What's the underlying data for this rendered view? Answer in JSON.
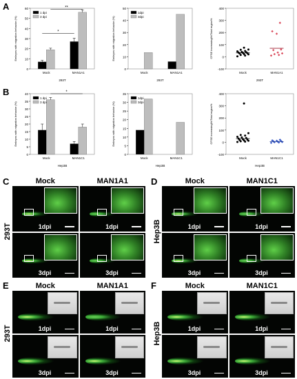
{
  "panels": {
    "A": "A",
    "B": "B",
    "C": "C",
    "D": "D",
    "E": "E",
    "F": "F"
  },
  "chart_data": [
    {
      "id": "A-left",
      "type": "bar",
      "categories": [
        "Mock",
        "MAN1A1"
      ],
      "series": [
        {
          "name": "1 dpi",
          "values": [
            7,
            27
          ]
        },
        {
          "name": "3 dpi",
          "values": [
            19,
            56
          ]
        }
      ],
      "errors": [
        [
          1.5,
          3.5
        ],
        [
          1.5,
          2.5
        ]
      ],
      "ylabel": "Embryos with migration behavior (%)",
      "xlabel": "293T",
      "ylim": [
        0,
        60
      ],
      "yticks": [
        0,
        10,
        20,
        30,
        40,
        50,
        60
      ],
      "sig": [
        {
          "label": "*"
        },
        {
          "label": "**"
        }
      ]
    },
    {
      "id": "A-middle",
      "type": "bar",
      "categories": [
        "Mock",
        "MAN1A1"
      ],
      "series": [
        {
          "name": "1dpi",
          "values": [
            0,
            6
          ]
        },
        {
          "name": "3dpi",
          "values": [
            13.5,
            45
          ]
        }
      ],
      "ylabel": "Embryos with migration behavior (%)",
      "xlabel": "293T",
      "ylim": [
        0,
        50
      ],
      "yticks": [
        0,
        10,
        20,
        30,
        40,
        50
      ]
    },
    {
      "id": "A-right",
      "type": "scatter",
      "categories": [
        "Mock",
        "MAN1A1"
      ],
      "points": [
        [
          4,
          10,
          15,
          20,
          22,
          28,
          30,
          33,
          35,
          38,
          40,
          45,
          48,
          58,
          60,
          75
        ],
        [
          10,
          15,
          22,
          28,
          35,
          55,
          60,
          190,
          210,
          280
        ]
      ],
      "medians": [
        32,
        70
      ],
      "ylabel": "CFSE increasing%/Total region%",
      "xlabel": "293T",
      "ylim": [
        -100,
        400
      ],
      "yticks": [
        -100,
        0,
        100,
        200,
        300,
        400
      ]
    },
    {
      "id": "B-left",
      "type": "bar",
      "categories": [
        "Mock",
        "MAN1C1"
      ],
      "series": [
        {
          "name": "1 dpi",
          "values": [
            16,
            7
          ]
        },
        {
          "name": "3 dpi",
          "values": [
            36,
            18
          ]
        }
      ],
      "errors": [
        [
          4,
          1.5
        ],
        [
          1.5,
          2
        ]
      ],
      "ylabel": "Embryos with migration behavior (%)",
      "xlabel": "Hep3B",
      "ylim": [
        0,
        40
      ],
      "yticks": [
        0,
        5,
        10,
        15,
        20,
        25,
        30,
        35,
        40
      ],
      "sig": [
        {
          "label": "*"
        }
      ]
    },
    {
      "id": "B-middle",
      "type": "bar",
      "categories": [
        "Mock",
        "MAN1C1"
      ],
      "series": [
        {
          "name": "1dpi",
          "values": [
            14,
            0
          ]
        },
        {
          "name": "3dpi",
          "values": [
            32,
            18.5
          ]
        }
      ],
      "ylabel": "Embryos with migration behavior (%)",
      "xlabel": "Hep3B",
      "ylim": [
        0,
        35
      ],
      "yticks": [
        0,
        5,
        10,
        15,
        20,
        25,
        30,
        35
      ]
    },
    {
      "id": "B-right",
      "type": "scatter",
      "categories": [
        "Mock",
        "MAN1C1"
      ],
      "points": [
        [
          2,
          5,
          8,
          12,
          15,
          18,
          22,
          25,
          30,
          35,
          40,
          45,
          55,
          60,
          75,
          320
        ],
        [
          -5,
          -2,
          0,
          2,
          5,
          8,
          10,
          12,
          15,
          20
        ]
      ],
      "medians": [
        30,
        5
      ],
      "ylabel": "CFSE increasing%/Total region%",
      "xlabel": "Hep3B",
      "ylim": [
        -100,
        400
      ],
      "yticks": [
        -100,
        0,
        100,
        200,
        300,
        400
      ]
    }
  ],
  "micrographs": {
    "C": {
      "cols": [
        "Mock",
        "MAN1A1"
      ],
      "row_label": "293T",
      "cells": [
        "1dpi",
        "1dpi",
        "3dpi",
        "3dpi"
      ]
    },
    "D": {
      "cols": [
        "Mock",
        "MAN1C1"
      ],
      "row_label": "Hep3B",
      "cells": [
        "1dpi",
        "1dpi",
        "3dpi",
        "3dpi"
      ]
    },
    "E": {
      "cols": [
        "Mock",
        "MAN1A1"
      ],
      "row_label": "293T",
      "cells": [
        "1dpi",
        "1dpi",
        "3dpi",
        "3dpi"
      ]
    },
    "F": {
      "cols": [
        "Mock",
        "MAN1C1"
      ],
      "row_label": "Hep3B",
      "cells": [
        "1dpi",
        "1dpi",
        "3dpi",
        "3dpi"
      ]
    }
  }
}
